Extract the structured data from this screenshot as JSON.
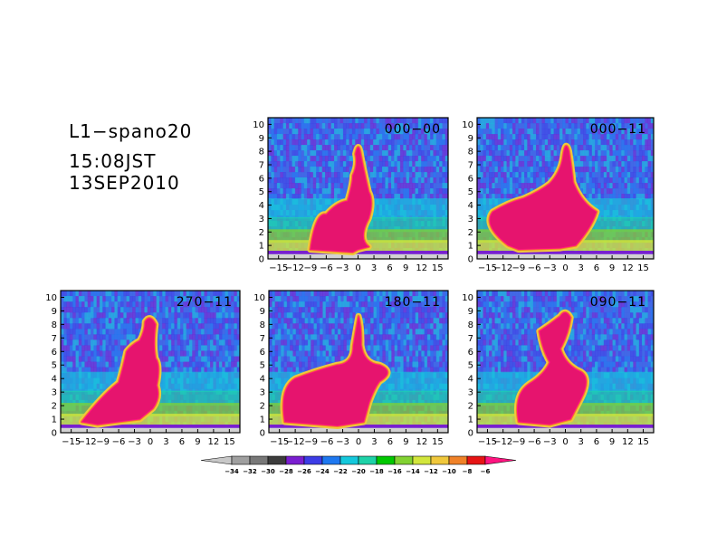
{
  "figure": {
    "info": [
      "L1−spano20",
      "15:08JST",
      "13SEP2010"
    ]
  },
  "chart_data": {
    "type": "heatmap",
    "x_ticks": [
      "−15",
      "−12",
      "−9",
      "−6",
      "−3",
      "0",
      "3",
      "6",
      "9",
      "12",
      "15"
    ],
    "y_ticks": [
      "0",
      "1",
      "2",
      "3",
      "4",
      "5",
      "6",
      "7",
      "8",
      "9",
      "10"
    ],
    "xlim": [
      -17,
      17
    ],
    "ylim": [
      0,
      10.5
    ],
    "grid": false,
    "panels": [
      {
        "label": "000−00",
        "plume": [
          [
            -9,
            0.7,
            -2,
            0.5
          ],
          [
            -8,
            3.5,
            -6,
            3.3
          ],
          [
            -4,
            4.2,
            -2,
            4.3
          ],
          [
            -1,
            5.6,
            -1,
            6.2
          ],
          [
            0,
            7.0,
            -0.5,
            7.8
          ],
          [
            0,
            8.7,
            0.4,
            8.0
          ],
          [
            1,
            6.7,
            2,
            5.0
          ],
          [
            3,
            4.3,
            2,
            3.0
          ],
          [
            0,
            1.5,
            2,
            0.9
          ],
          [
            0,
            0.7
          ],
          [
            -1,
            0.5
          ]
        ]
      },
      {
        "label": "000−11",
        "plume": [
          [
            -11,
            1.0,
            -14,
            1.8
          ],
          [
            -16,
            2.5,
            -14,
            3.5
          ],
          [
            -11,
            4.2,
            -8,
            4.5
          ],
          [
            -5,
            5.0,
            -3,
            5.6
          ],
          [
            -1,
            6.4,
            -0.5,
            7.5
          ],
          [
            0,
            9.0,
            0.7,
            8.0
          ],
          [
            1.2,
            6.8,
            1.5,
            5.7
          ],
          [
            3,
            4.2,
            6,
            3.5
          ],
          [
            5,
            2.3,
            2,
            1.0
          ],
          [
            -1,
            0.8
          ],
          [
            -9,
            0.7
          ]
        ]
      },
      {
        "label": "270−11",
        "plume": [
          [
            -13,
            0.8,
            -12,
            1.8
          ],
          [
            -9,
            2.8,
            -6,
            3.7
          ],
          [
            -5,
            5.0,
            -4.5,
            6.0
          ],
          [
            -3.5,
            6.5,
            -2,
            6.8
          ],
          [
            -1,
            7.5,
            -1,
            8.2
          ],
          [
            0,
            8.8,
            1,
            8.0
          ],
          [
            0.5,
            6.5,
            1,
            5.5
          ],
          [
            2,
            5.0,
            1.2,
            3.5
          ],
          [
            2,
            2.6,
            0.5,
            1.8
          ],
          [
            -2,
            1.0
          ],
          [
            -10,
            0.6
          ]
        ]
      },
      {
        "label": "180−11",
        "plume": [
          [
            -14,
            0.8,
            -16,
            2.2
          ],
          [
            -15,
            3.3,
            -12,
            4.0
          ],
          [
            -8,
            4.6,
            -4,
            5.0
          ],
          [
            -1,
            5.1,
            -1,
            6.4
          ],
          [
            -0.5,
            7.6,
            0,
            8.6
          ],
          [
            0.6,
            7.8,
            0.5,
            6.5
          ],
          [
            1,
            5.1,
            4,
            5.0
          ],
          [
            7,
            4.5,
            4,
            3.8
          ],
          [
            3,
            3.3,
            2,
            2.2
          ],
          [
            1,
            0.8
          ],
          [
            -4,
            0.5
          ]
        ]
      },
      {
        "label": "090−11",
        "plume": [
          [
            -9,
            0.8,
            -12,
            1.7
          ],
          [
            -10,
            2.8,
            -7,
            3.6
          ],
          [
            -4,
            4.3,
            -3,
            5.2
          ],
          [
            -4.5,
            6.2,
            -5,
            7.5
          ],
          [
            -3,
            8.0,
            -1,
            8.6
          ],
          [
            0,
            9.2,
            1,
            8.5
          ],
          [
            0.5,
            7.2,
            -1,
            6.2
          ],
          [
            0,
            5.0,
            3,
            4.5
          ],
          [
            5,
            4.0,
            3,
            2.5
          ],
          [
            1,
            1.0
          ],
          [
            -3,
            0.6
          ]
        ]
      }
    ],
    "colorbar": {
      "labels": [
        "−34",
        "−32",
        "−30",
        "−28",
        "−26",
        "−24",
        "−22",
        "−20",
        "−18",
        "−16",
        "−14",
        "−12",
        "−10",
        "−8",
        "−6"
      ],
      "colors": [
        "#c8c8c8",
        "#a0a0a0",
        "#787878",
        "#3c3c3c",
        "#7a1ed0",
        "#3c3ce6",
        "#1e78f0",
        "#14c8dc",
        "#1ed2a8",
        "#00c800",
        "#82d232",
        "#d2e63c",
        "#f0c83c",
        "#f08228",
        "#e61414",
        "#ff1480"
      ]
    }
  }
}
